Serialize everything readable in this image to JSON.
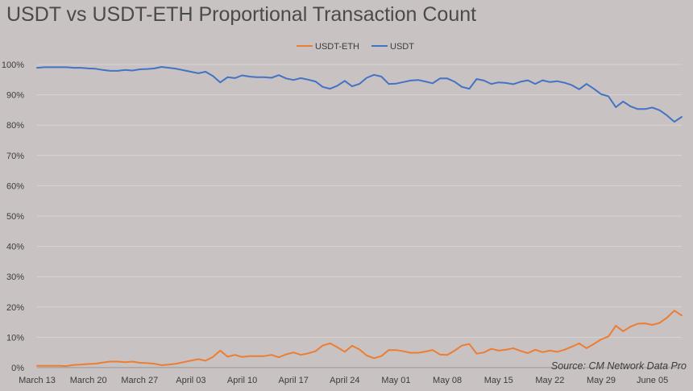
{
  "chart_data": {
    "type": "line",
    "title": "USDT vs USDT-ETH Proportional Transaction Count",
    "source": "Source: CM Network Data Pro",
    "legend_position": "top-center",
    "grid": true,
    "xlabel": "",
    "ylabel": "",
    "ylim": [
      0,
      100
    ],
    "y_tick_values": [
      0,
      10,
      20,
      30,
      40,
      50,
      60,
      70,
      80,
      90,
      100
    ],
    "y_tick_labels": [
      "0%",
      "10%",
      "20%",
      "30%",
      "40%",
      "50%",
      "60%",
      "70%",
      "80%",
      "90%",
      "100%"
    ],
    "x_tick_labels": [
      "March 13",
      "March 20",
      "March 27",
      "April 03",
      "April 10",
      "April 17",
      "April 24",
      "May 01",
      "May 08",
      "May 15",
      "May 22",
      "May 29",
      "June 05"
    ],
    "x_tick_every": 7,
    "x_start": "March 13",
    "series": [
      {
        "name": "USDT-ETH",
        "color": "#ed7d31",
        "values": [
          0.6,
          0.6,
          0.6,
          0.6,
          0.5,
          0.9,
          1.0,
          1.2,
          1.3,
          1.7,
          2.0,
          2.0,
          1.8,
          2.0,
          1.6,
          1.5,
          1.3,
          0.8,
          1.0,
          1.3,
          1.8,
          2.3,
          2.8,
          2.3,
          3.5,
          5.6,
          3.6,
          4.2,
          3.5,
          3.8,
          3.8,
          3.8,
          4.2,
          3.4,
          4.4,
          5.0,
          4.2,
          4.7,
          5.4,
          7.3,
          8.0,
          6.7,
          5.2,
          7.2,
          6.0,
          4.0,
          3.1,
          3.8,
          5.8,
          5.8,
          5.4,
          4.9,
          4.9,
          5.3,
          5.8,
          4.3,
          4.2,
          5.6,
          7.3,
          7.8,
          4.6,
          5.0,
          6.2,
          5.6,
          5.9,
          6.4,
          5.5,
          4.8,
          5.9,
          5.1,
          5.6,
          5.2,
          5.9,
          6.9,
          8.0,
          6.4,
          7.8,
          9.3,
          10.3,
          13.8,
          12.0,
          13.5,
          14.5,
          14.6,
          14.1,
          14.8,
          16.5,
          18.8,
          17.2
        ]
      },
      {
        "name": "USDT",
        "color": "#4472c4",
        "values": [
          98.9,
          99.1,
          99.1,
          99.1,
          99.1,
          98.9,
          98.9,
          98.7,
          98.6,
          98.2,
          97.9,
          97.9,
          98.2,
          98.0,
          98.4,
          98.5,
          98.7,
          99.2,
          98.9,
          98.6,
          98.1,
          97.6,
          97.1,
          97.6,
          96.2,
          94.1,
          95.8,
          95.5,
          96.4,
          96.0,
          95.8,
          95.8,
          95.6,
          96.5,
          95.4,
          94.9,
          95.5,
          95.0,
          94.4,
          92.6,
          92.0,
          93.0,
          94.6,
          92.8,
          93.6,
          95.6,
          96.6,
          96.0,
          93.6,
          93.7,
          94.2,
          94.7,
          94.9,
          94.4,
          93.8,
          95.4,
          95.4,
          94.3,
          92.6,
          92.0,
          95.2,
          94.7,
          93.6,
          94.1,
          93.9,
          93.5,
          94.3,
          94.8,
          93.6,
          94.8,
          94.2,
          94.5,
          94.0,
          93.2,
          91.8,
          93.6,
          92.0,
          90.2,
          89.5,
          85.9,
          87.8,
          86.2,
          85.3,
          85.3,
          85.8,
          84.9,
          83.2,
          81.1,
          82.7
        ]
      }
    ]
  }
}
